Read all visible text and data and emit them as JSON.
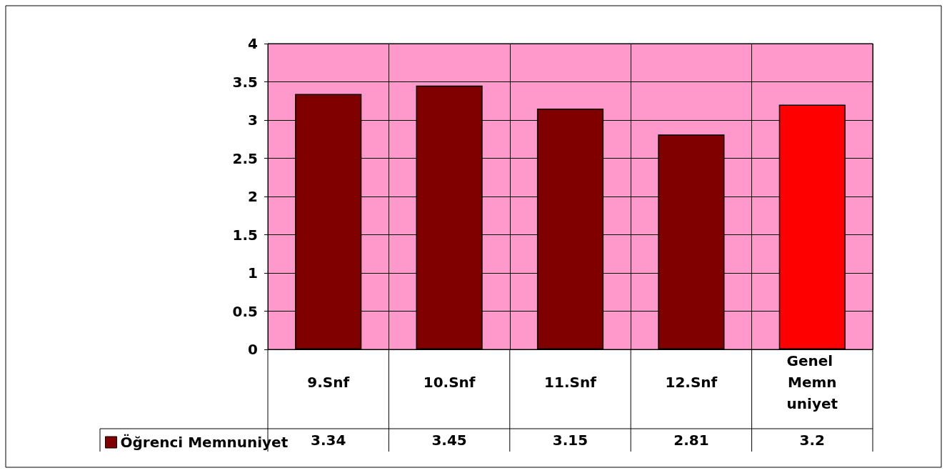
{
  "chart_data": {
    "type": "bar",
    "categories": [
      "9.Snf",
      "10.Snf",
      "11.Snf",
      "12.Snf",
      "Genel Memnuniyet"
    ],
    "series": [
      {
        "name": "Öğrenci Memnuniyet",
        "color": "#800000",
        "values": [
          3.34,
          3.45,
          3.15,
          2.81,
          3.2
        ],
        "colors": [
          "#800000",
          "#800000",
          "#800000",
          "#800000",
          "#ff0000"
        ]
      }
    ],
    "ylim": [
      0,
      4
    ],
    "yticks": [
      0,
      0.5,
      1,
      1.5,
      2,
      2.5,
      3,
      3.5,
      4
    ],
    "grid": true,
    "legend": "bottom left",
    "data_labels": true
  }
}
